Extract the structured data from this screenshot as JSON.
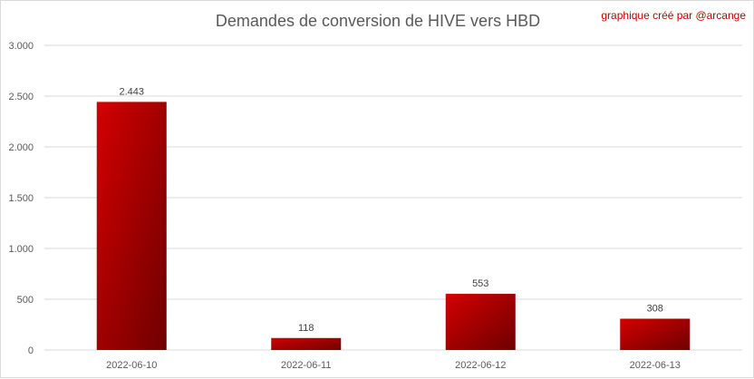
{
  "chart_data": {
    "type": "bar",
    "title": "Demandes de conversion de HIVE vers HBD",
    "subtitle": "graphique créé par @arcange",
    "xlabel": "",
    "ylabel": "",
    "categories": [
      "2022-06-10",
      "2022-06-11",
      "2022-06-12",
      "2022-06-13"
    ],
    "values": [
      2443,
      118,
      553,
      308
    ],
    "value_labels": [
      "2.443",
      "118",
      "553",
      "308"
    ],
    "ylim": [
      0,
      3000
    ],
    "yticks": [
      0,
      500,
      1000,
      1500,
      2000,
      2500,
      3000
    ],
    "ytick_labels": [
      "0",
      "500",
      "1.000",
      "1.500",
      "2.000",
      "2.500",
      "3.000"
    ],
    "grid": true,
    "legend": "none",
    "colors": {
      "bar_light": "#d40000",
      "bar_dark": "#6e0000",
      "grid": "#d9d9d9"
    }
  }
}
